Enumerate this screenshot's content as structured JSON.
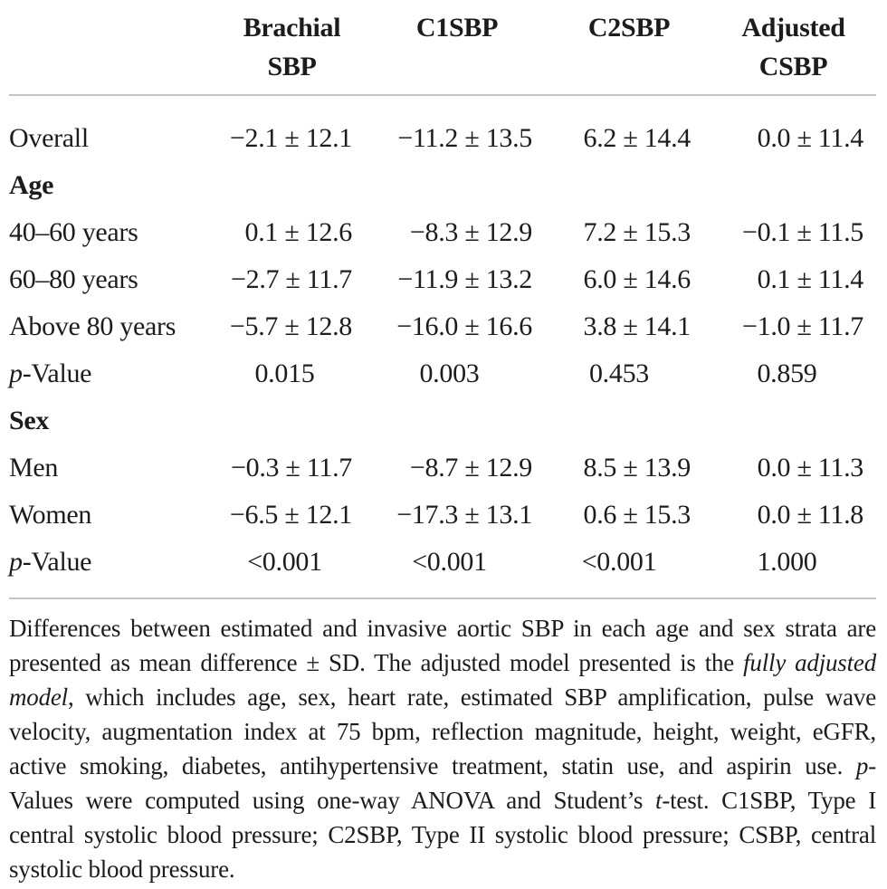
{
  "page": {
    "background": "#ffffff",
    "text_color": "#1c1c1c",
    "rule_color": "#c4c4c4"
  },
  "table": {
    "columns": [
      {
        "label": ""
      },
      {
        "label": "Brachial SBP"
      },
      {
        "label": "C1SBP"
      },
      {
        "label": "C2SBP"
      },
      {
        "label": "Adjusted CSBP"
      }
    ],
    "rows": [
      {
        "name": "overall",
        "type": "data",
        "label": [
          {
            "t": "Overall"
          }
        ],
        "cells": [
          "−2.1 ± 12.1",
          "−11.2 ± 13.5",
          "6.2 ± 14.4",
          "0.0 ± 11.4"
        ]
      },
      {
        "name": "age-section",
        "type": "section",
        "label": [
          {
            "t": "Age"
          }
        ],
        "cells": [
          "",
          "",
          "",
          ""
        ]
      },
      {
        "name": "age-40-60",
        "type": "data",
        "label": [
          {
            "t": "40–60 years"
          }
        ],
        "cells": [
          "0.1 ± 12.6",
          "−8.3 ± 12.9",
          "7.2 ± 15.3",
          "−0.1 ± 11.5"
        ]
      },
      {
        "name": "age-60-80",
        "type": "data",
        "label": [
          {
            "t": "60–80 years"
          }
        ],
        "cells": [
          "−2.7 ± 11.7",
          "−11.9 ± 13.2",
          "6.0 ± 14.6",
          "0.1 ± 11.4"
        ]
      },
      {
        "name": "age-above-80",
        "type": "data",
        "label": [
          {
            "t": "Above 80 years"
          }
        ],
        "cells": [
          "−5.7 ± 12.8",
          "−16.0 ± 16.6",
          "3.8 ± 14.1",
          "−1.0 ± 11.7"
        ]
      },
      {
        "name": "age-p-value",
        "type": "pvalue",
        "label": [
          {
            "t": "p",
            "i": true
          },
          {
            "t": "-Value"
          }
        ],
        "cells": [
          "0.015",
          "0.003",
          "0.453",
          "0.859"
        ]
      },
      {
        "name": "sex-section",
        "type": "section",
        "label": [
          {
            "t": "Sex"
          }
        ],
        "cells": [
          "",
          "",
          "",
          ""
        ]
      },
      {
        "name": "men",
        "type": "data",
        "label": [
          {
            "t": "Men"
          }
        ],
        "cells": [
          "−0.3 ± 11.7",
          "−8.7 ± 12.9",
          "8.5 ± 13.9",
          "0.0 ± 11.3"
        ]
      },
      {
        "name": "women",
        "type": "data",
        "label": [
          {
            "t": "Women"
          }
        ],
        "cells": [
          "−6.5 ± 12.1",
          "−17.3 ± 13.1",
          "0.6 ± 15.3",
          "0.0 ± 11.8"
        ]
      },
      {
        "name": "sex-p-value",
        "type": "pvalue",
        "label": [
          {
            "t": "p",
            "i": true
          },
          {
            "t": "-Value"
          }
        ],
        "cells": [
          "<0.001",
          "<0.001",
          "<0.001",
          "1.000"
        ]
      }
    ],
    "footnote_lines": [
      [
        {
          "t": "Differences between estimated and invasive aortic SBP in each age and sex strata are"
        }
      ],
      [
        {
          "t": "presented as mean difference ± SD. The adjusted model presented is the "
        },
        {
          "t": "fully adjusted",
          "i": true
        }
      ],
      [
        {
          "t": "model",
          "i": true
        },
        {
          "t": ", which includes age, sex, heart rate, estimated SBP amplification, pulse wave"
        }
      ],
      [
        {
          "t": "velocity, augmentation index at 75 bpm, reflection magnitude, height, weight, eGFR,"
        }
      ],
      [
        {
          "t": "active smoking, diabetes, antihypertensive treatment, statin use, and aspirin use. "
        },
        {
          "t": "p",
          "i": true
        },
        {
          "t": "-"
        }
      ],
      [
        {
          "t": "Values were computed using one-way ANOVA and Student’s "
        },
        {
          "t": "t",
          "i": true
        },
        {
          "t": "-test. C1SBP, Type I"
        }
      ],
      [
        {
          "t": "central systolic blood pressure; C2SBP, Type II systolic blood pressure; CSBP, central"
        }
      ],
      [
        {
          "t": "systolic blood pressure."
        }
      ]
    ]
  }
}
